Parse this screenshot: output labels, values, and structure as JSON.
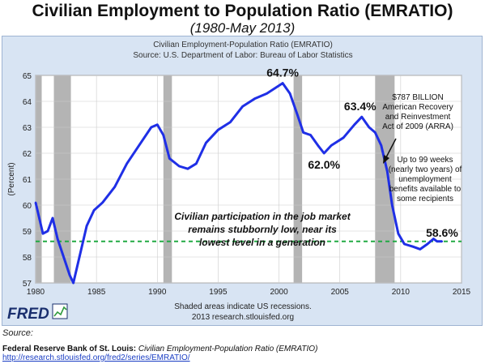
{
  "page": {
    "title": "Civilian Employment to Population Ratio (EMRATIO)",
    "subtitle": "(1980-May 2013)"
  },
  "chart_data": {
    "type": "line",
    "title": "Civilian Employment-Population Ratio (EMRATIO)",
    "subtitle": "Source: U.S. Department of Labor: Bureau of Labor Statistics",
    "ylabel": "(Percent)",
    "xlabel": "",
    "xlim": [
      1980,
      2015
    ],
    "ylim": [
      57,
      65
    ],
    "xticks": [
      1980,
      1985,
      1990,
      1995,
      2000,
      2005,
      2010,
      2015
    ],
    "yticks": [
      57,
      58,
      59,
      60,
      61,
      62,
      63,
      64,
      65
    ],
    "grid": true,
    "colors": {
      "line": "#1f2fe6",
      "recession": "#b4b4b4",
      "reference": "#22aa44",
      "plot_bg": "#ffffff",
      "frame_bg": "#d8e4f3",
      "grid": "#cccccc"
    },
    "recessions": [
      {
        "start": 1980.0,
        "end": 1980.5
      },
      {
        "start": 1981.5,
        "end": 1982.9
      },
      {
        "start": 1990.5,
        "end": 1991.2
      },
      {
        "start": 2001.2,
        "end": 2001.9
      },
      {
        "start": 2007.9,
        "end": 2009.5
      }
    ],
    "series": [
      {
        "values": [
          {
            "x": 1980.0,
            "y": 60.1
          },
          {
            "x": 1980.3,
            "y": 59.5
          },
          {
            "x": 1980.6,
            "y": 58.9
          },
          {
            "x": 1981.0,
            "y": 59.0
          },
          {
            "x": 1981.4,
            "y": 59.5
          },
          {
            "x": 1981.8,
            "y": 58.7
          },
          {
            "x": 1982.3,
            "y": 58.0
          },
          {
            "x": 1982.8,
            "y": 57.3
          },
          {
            "x": 1983.1,
            "y": 57.0
          },
          {
            "x": 1983.6,
            "y": 58.0
          },
          {
            "x": 1984.2,
            "y": 59.2
          },
          {
            "x": 1984.8,
            "y": 59.8
          },
          {
            "x": 1985.5,
            "y": 60.1
          },
          {
            "x": 1986.5,
            "y": 60.7
          },
          {
            "x": 1987.5,
            "y": 61.6
          },
          {
            "x": 1988.5,
            "y": 62.3
          },
          {
            "x": 1989.5,
            "y": 63.0
          },
          {
            "x": 1990.0,
            "y": 63.1
          },
          {
            "x": 1990.5,
            "y": 62.7
          },
          {
            "x": 1991.0,
            "y": 61.8
          },
          {
            "x": 1991.8,
            "y": 61.5
          },
          {
            "x": 1992.5,
            "y": 61.4
          },
          {
            "x": 1993.2,
            "y": 61.6
          },
          {
            "x": 1994.0,
            "y": 62.4
          },
          {
            "x": 1995.0,
            "y": 62.9
          },
          {
            "x": 1996.0,
            "y": 63.2
          },
          {
            "x": 1997.0,
            "y": 63.8
          },
          {
            "x": 1998.0,
            "y": 64.1
          },
          {
            "x": 1999.0,
            "y": 64.3
          },
          {
            "x": 2000.3,
            "y": 64.7
          },
          {
            "x": 2000.9,
            "y": 64.3
          },
          {
            "x": 2001.5,
            "y": 63.5
          },
          {
            "x": 2002.0,
            "y": 62.8
          },
          {
            "x": 2002.6,
            "y": 62.7
          },
          {
            "x": 2003.2,
            "y": 62.3
          },
          {
            "x": 2003.7,
            "y": 62.0
          },
          {
            "x": 2004.3,
            "y": 62.3
          },
          {
            "x": 2005.3,
            "y": 62.6
          },
          {
            "x": 2006.2,
            "y": 63.1
          },
          {
            "x": 2006.8,
            "y": 63.4
          },
          {
            "x": 2007.4,
            "y": 63.0
          },
          {
            "x": 2007.9,
            "y": 62.8
          },
          {
            "x": 2008.4,
            "y": 62.3
          },
          {
            "x": 2008.9,
            "y": 61.3
          },
          {
            "x": 2009.3,
            "y": 60.0
          },
          {
            "x": 2009.8,
            "y": 58.9
          },
          {
            "x": 2010.3,
            "y": 58.5
          },
          {
            "x": 2011.0,
            "y": 58.4
          },
          {
            "x": 2011.6,
            "y": 58.3
          },
          {
            "x": 2012.2,
            "y": 58.5
          },
          {
            "x": 2012.7,
            "y": 58.7
          },
          {
            "x": 2013.0,
            "y": 58.6
          },
          {
            "x": 2013.4,
            "y": 58.6
          }
        ]
      }
    ],
    "reference_line": {
      "y": 58.6
    },
    "annotations": {
      "peak_2000": {
        "text": "64.7%",
        "x": 2000.3,
        "y": 64.7
      },
      "trough_2003": {
        "text": "62.0%",
        "x": 2003.7,
        "y": 62.0
      },
      "peak_2006": {
        "text": "63.4%",
        "x": 2006.8,
        "y": 63.4
      },
      "current": {
        "text": "58.6%",
        "x": 2013.0,
        "y": 58.6
      },
      "arra": {
        "lines": [
          "$787 BILLION",
          "American Recovery",
          "and Reinvestment",
          "Act of 2009 (ARRA)"
        ]
      },
      "unemployment": {
        "lines": [
          "Up to 99 weeks",
          "(nearly two years) of",
          "unemployment",
          "benefits available to",
          "some recipients"
        ]
      },
      "participation": {
        "lines": [
          "Civilian participation in the job market",
          "remains stubbornly low, near its",
          "lowest level in a generation"
        ]
      }
    },
    "footer": {
      "recession_note": "Shaded areas indicate US recessions.",
      "credit": "2013 research.stlouisfed.org"
    },
    "logo": {
      "text": "FRED"
    }
  },
  "source": {
    "label": "Source:",
    "org": "Federal Reserve Bank of St. Louis:",
    "series_title": "Civilian Employment-Population Ratio (EMRATIO)",
    "url": "http://research.stlouisfed.org/fred2/series/EMRATIO/"
  }
}
